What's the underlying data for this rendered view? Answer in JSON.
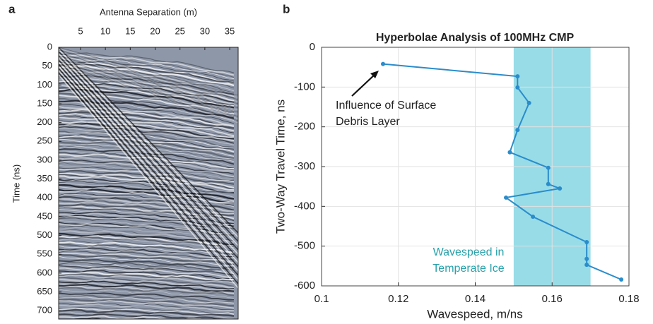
{
  "chart_data": [
    {
      "type": "image",
      "panel_label": "a",
      "xlabel": "Antenna Separation (m)",
      "ylabel": "Time (ns)",
      "xlim": [
        0.6,
        36.7
      ],
      "xticks": [
        5,
        10,
        15,
        20,
        25,
        30,
        35
      ],
      "ylim": [
        0,
        722
      ],
      "y_inverted": true,
      "yticks": [
        0,
        50,
        100,
        150,
        200,
        250,
        300,
        350,
        400,
        450,
        500,
        550,
        600,
        650,
        700
      ]
    },
    {
      "type": "line",
      "panel_label": "b",
      "title": "Hyperbolae Analysis of 100MHz CMP",
      "xlabel": "Wavespeed, m/ns",
      "ylabel": "Two-Way Travel Time, ns",
      "xlim": [
        0.1,
        0.18
      ],
      "xticks": [
        0.1,
        0.12,
        0.14,
        0.16,
        0.18
      ],
      "ylim": [
        -600,
        0
      ],
      "yticks": [
        -600,
        -500,
        -400,
        -300,
        -200,
        -100,
        0
      ],
      "grid": true,
      "band": {
        "x": [
          0.15,
          0.17
        ],
        "color": "#97dce7"
      },
      "x": [
        0.116,
        0.151,
        0.151,
        0.154,
        0.151,
        0.149,
        0.159,
        0.159,
        0.162,
        0.148,
        0.155,
        0.169,
        0.169,
        0.169,
        0.178
      ],
      "series": [
        {
          "color": "#2a8ccb",
          "values": [
            -42,
            -73,
            -101,
            -140,
            -208,
            -264,
            -303,
            -344,
            -355,
            -378,
            -426,
            -490,
            -532,
            -547,
            -584
          ]
        }
      ],
      "annotations": [
        {
          "lines": [
            "Influence of Surface",
            "Debris Layer"
          ],
          "color": "#222222"
        },
        {
          "lines": [
            "Wavespeed in",
            "Temperate Ice"
          ],
          "color": "#2aa1aa"
        }
      ]
    }
  ]
}
